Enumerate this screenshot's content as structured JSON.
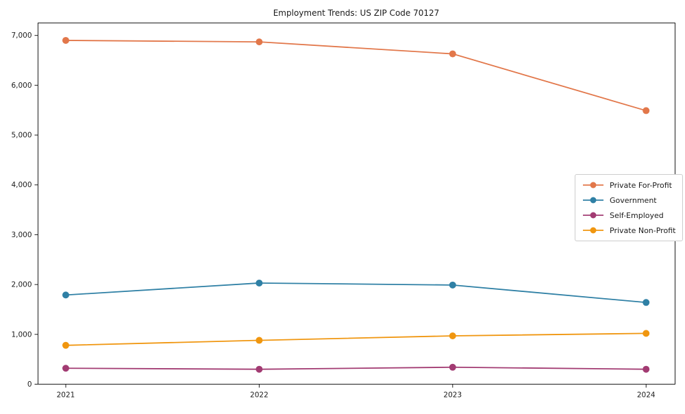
{
  "chart_data": {
    "type": "line",
    "title": "Employment Trends: US ZIP Code 70127",
    "x": [
      "2021",
      "2022",
      "2023",
      "2024"
    ],
    "series": [
      {
        "name": "Private For-Profit",
        "color": "#E2774A",
        "values": [
          6900,
          6870,
          6630,
          5490
        ]
      },
      {
        "name": "Government",
        "color": "#2F80A5",
        "values": [
          1790,
          2030,
          1990,
          1640
        ]
      },
      {
        "name": "Self-Employed",
        "color": "#A23B72",
        "values": [
          320,
          300,
          340,
          300
        ]
      },
      {
        "name": "Private Non-Profit",
        "color": "#F0960F",
        "values": [
          780,
          880,
          970,
          1020
        ]
      }
    ],
    "xlabel": "",
    "ylabel": "",
    "ylim": [
      0,
      7250
    ],
    "yticks": [
      0,
      1000,
      2000,
      3000,
      4000,
      5000,
      6000,
      7000
    ],
    "ytick_labels": [
      "0",
      "1,000",
      "2,000",
      "3,000",
      "4,000",
      "5,000",
      "6,000",
      "7,000"
    ],
    "grid": false,
    "legend": {
      "position": "center-right",
      "border": true
    }
  }
}
